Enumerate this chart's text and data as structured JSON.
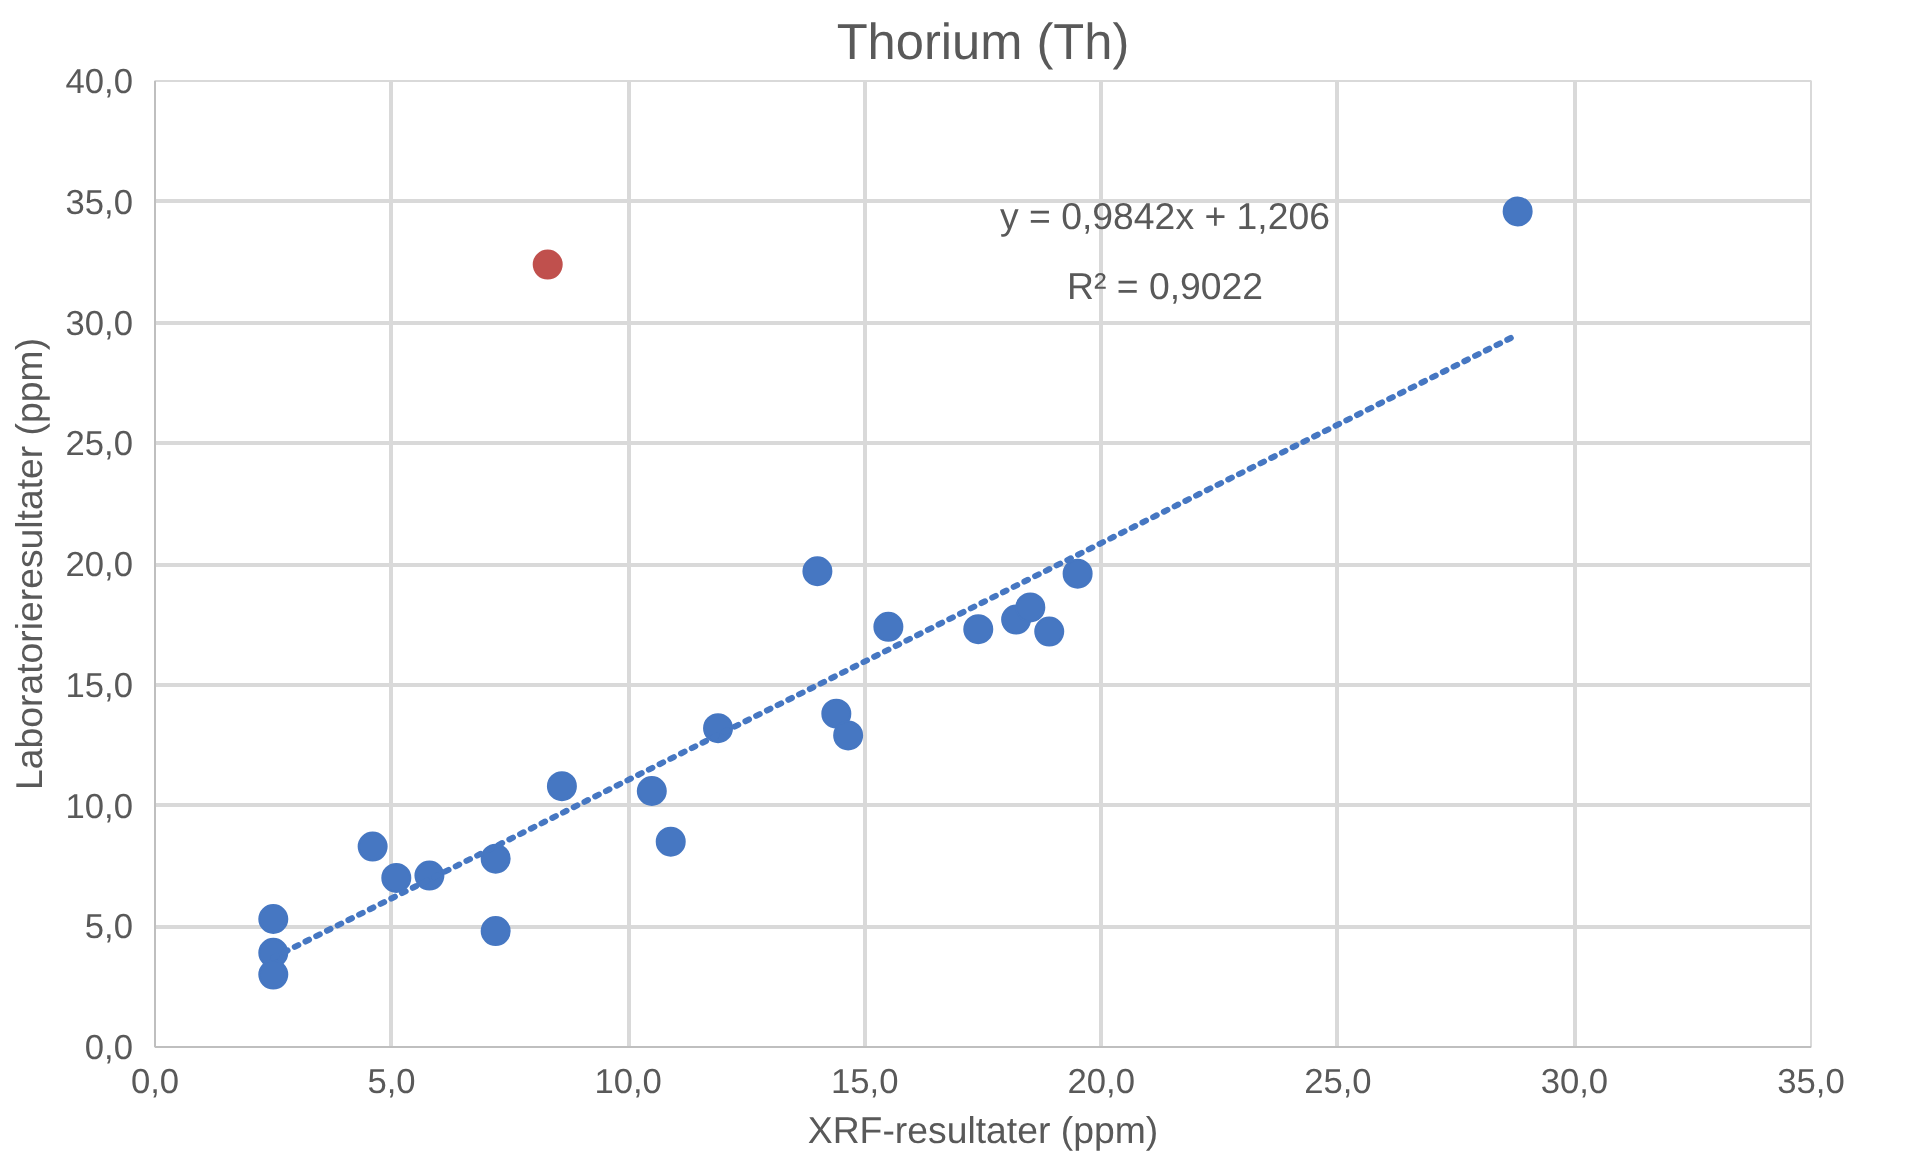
{
  "chart_data": {
    "type": "scatter",
    "title": "Thorium (Th)",
    "xlabel": "XRF-resultater (ppm)",
    "ylabel": "Laboratorieresultater (ppm)",
    "series": [
      {
        "color": "#4677c2",
        "x": [
          2.5,
          2.5,
          2.5,
          4.6,
          5.1,
          5.8,
          7.2,
          7.2,
          8.6,
          10.5,
          10.9,
          11.9,
          14.0,
          14.4,
          14.65,
          15.5,
          17.4,
          18.2,
          18.5,
          18.9,
          19.5,
          28.8
        ],
        "values": [
          5.3,
          3.9,
          3.0,
          8.3,
          7.0,
          7.1,
          7.8,
          4.8,
          10.8,
          10.6,
          8.5,
          13.2,
          19.7,
          13.8,
          12.9,
          17.4,
          17.3,
          17.7,
          18.2,
          17.2,
          19.6,
          34.6
        ]
      },
      {
        "color": "#c0504d",
        "x": [
          8.3
        ],
        "values": [
          32.4
        ]
      },
      {
        "type": "line",
        "line_style": "dotted",
        "marker": "none",
        "color": "#4677c2",
        "x": [
          2.5,
          28.8
        ],
        "values": [
          3.7,
          29.5
        ]
      }
    ],
    "annotations": [
      "y = 0,9842x + 1,206",
      "R² = 0,9022"
    ],
    "xlim": [
      0,
      35
    ],
    "ylim": [
      0,
      40
    ],
    "xticks": [
      {
        "value": 0,
        "label": "0,0"
      },
      {
        "value": 5,
        "label": "5,0"
      },
      {
        "value": 10,
        "label": "10,0"
      },
      {
        "value": 15,
        "label": "15,0"
      },
      {
        "value": 20,
        "label": "20,0"
      },
      {
        "value": 25,
        "label": "25,0"
      },
      {
        "value": 30,
        "label": "30,0"
      },
      {
        "value": 35,
        "label": "35,0"
      }
    ],
    "yticks": [
      {
        "value": 0,
        "label": "0,0"
      },
      {
        "value": 5,
        "label": "5,0"
      },
      {
        "value": 10,
        "label": "10,0"
      },
      {
        "value": 15,
        "label": "15,0"
      },
      {
        "value": 20,
        "label": "20,0"
      },
      {
        "value": 25,
        "label": "25,0"
      },
      {
        "value": 30,
        "label": "30,0"
      },
      {
        "value": 35,
        "label": "35,0"
      },
      {
        "value": 40,
        "label": "40,0"
      }
    ],
    "grid": true,
    "marker": "circle"
  }
}
